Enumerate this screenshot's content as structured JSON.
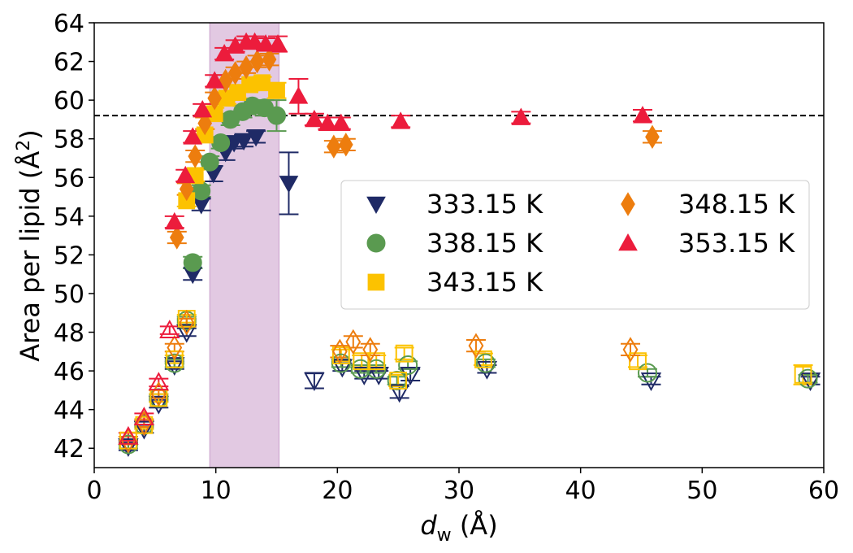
{
  "chart_data": {
    "type": "scatter",
    "title": "",
    "xlabel": {
      "main": "d",
      "sub": "w",
      "rest": " (Å)"
    },
    "ylabel": {
      "main": "Area per lipid (Å",
      "sup": "2",
      "rest": ")"
    },
    "xlim": [
      0,
      60
    ],
    "ylim": [
      41,
      64
    ],
    "xticks": [
      0,
      10,
      20,
      30,
      40,
      50,
      60
    ],
    "yticks": [
      42,
      44,
      46,
      48,
      50,
      52,
      54,
      56,
      58,
      60,
      62,
      64
    ],
    "hline": {
      "y": 59.2,
      "style": "dashed",
      "color": "#000000"
    },
    "shaded_region": {
      "x": [
        9.5,
        15.2
      ],
      "color": "#e2c9e2",
      "edge": "#c9a0cc"
    },
    "legend": {
      "placement": "center-right",
      "columns": 2
    },
    "series": [
      {
        "name": "333.15 K",
        "marker": "triangle-down",
        "color": "#1f2a66",
        "filled": [
          {
            "x": 8.1,
            "y": 51.0,
            "err": 0.3
          },
          {
            "x": 8.8,
            "y": 54.6,
            "err": 0.3
          },
          {
            "x": 9.8,
            "y": 56.2,
            "err": 0.4
          },
          {
            "x": 10.8,
            "y": 57.3,
            "err": 0.4
          },
          {
            "x": 11.5,
            "y": 57.8,
            "err": 0.3
          },
          {
            "x": 12.3,
            "y": 57.9,
            "err": 0.3
          },
          {
            "x": 13.3,
            "y": 58.1,
            "err": 0.3
          },
          {
            "x": 16.0,
            "y": 55.7,
            "err": 1.6
          }
        ],
        "open": [
          {
            "x": 2.8,
            "y": 42.1,
            "err": 0.2
          },
          {
            "x": 4.1,
            "y": 43.0,
            "err": 0.2
          },
          {
            "x": 5.3,
            "y": 44.3,
            "err": 0.2
          },
          {
            "x": 6.6,
            "y": 46.3,
            "err": 0.2
          },
          {
            "x": 7.6,
            "y": 48.0,
            "err": 0.2
          },
          {
            "x": 18.1,
            "y": 45.5,
            "err": 0.4
          },
          {
            "x": 20.4,
            "y": 46.2,
            "err": 0.2
          },
          {
            "x": 22.2,
            "y": 45.8,
            "err": 0.2
          },
          {
            "x": 23.4,
            "y": 45.8,
            "err": 0.2
          },
          {
            "x": 25.1,
            "y": 44.9,
            "err": 0.3
          },
          {
            "x": 26.0,
            "y": 45.8,
            "err": 0.3
          },
          {
            "x": 32.3,
            "y": 46.1,
            "err": 0.2
          },
          {
            "x": 45.8,
            "y": 45.5,
            "err": 0.2
          },
          {
            "x": 58.9,
            "y": 45.5,
            "err": 0.2
          }
        ]
      },
      {
        "name": "338.15 K",
        "marker": "circle",
        "color": "#5a9a50",
        "filled": [
          {
            "x": 8.1,
            "y": 51.6,
            "err": 0.3
          },
          {
            "x": 8.8,
            "y": 55.3,
            "err": 0.3
          },
          {
            "x": 9.5,
            "y": 56.8,
            "err": 0.3
          },
          {
            "x": 10.4,
            "y": 57.8,
            "err": 0.3
          },
          {
            "x": 11.2,
            "y": 59.0,
            "err": 0.3
          },
          {
            "x": 12.2,
            "y": 59.4,
            "err": 0.3
          },
          {
            "x": 13.0,
            "y": 59.7,
            "err": 0.3
          },
          {
            "x": 14.0,
            "y": 59.6,
            "err": 0.4
          },
          {
            "x": 15.0,
            "y": 59.2,
            "err": 0.8
          }
        ],
        "open": [
          {
            "x": 2.8,
            "y": 42.2,
            "err": 0.2
          },
          {
            "x": 4.1,
            "y": 43.2,
            "err": 0.2
          },
          {
            "x": 5.3,
            "y": 44.6,
            "err": 0.2
          },
          {
            "x": 6.6,
            "y": 46.4,
            "err": 0.2
          },
          {
            "x": 7.6,
            "y": 48.6,
            "err": 0.2
          },
          {
            "x": 20.3,
            "y": 46.4,
            "err": 0.2
          },
          {
            "x": 21.9,
            "y": 46.1,
            "err": 0.2
          },
          {
            "x": 23.2,
            "y": 46.1,
            "err": 0.2
          },
          {
            "x": 24.9,
            "y": 45.5,
            "err": 0.2
          },
          {
            "x": 25.8,
            "y": 46.3,
            "err": 0.2
          },
          {
            "x": 32.2,
            "y": 46.4,
            "err": 0.2
          },
          {
            "x": 45.5,
            "y": 45.9,
            "err": 0.2
          },
          {
            "x": 58.7,
            "y": 45.6,
            "err": 0.2
          }
        ]
      },
      {
        "name": "343.15 K",
        "marker": "square",
        "color": "#fcc200",
        "filled": [
          {
            "x": 7.6,
            "y": 54.8,
            "err": 0.3
          },
          {
            "x": 8.3,
            "y": 56.1,
            "err": 0.3
          },
          {
            "x": 9.1,
            "y": 58.2,
            "err": 0.3
          },
          {
            "x": 9.9,
            "y": 59.3,
            "err": 0.3
          },
          {
            "x": 10.9,
            "y": 60.1,
            "err": 0.3
          },
          {
            "x": 11.8,
            "y": 60.4,
            "err": 0.3
          },
          {
            "x": 12.8,
            "y": 60.8,
            "err": 0.3
          },
          {
            "x": 13.8,
            "y": 60.9,
            "err": 0.3
          },
          {
            "x": 15.0,
            "y": 60.5,
            "err": 0.4
          }
        ],
        "open": [
          {
            "x": 2.8,
            "y": 42.4,
            "err": 0.2
          },
          {
            "x": 4.1,
            "y": 43.2,
            "err": 0.2
          },
          {
            "x": 5.3,
            "y": 44.6,
            "err": 0.2
          },
          {
            "x": 6.6,
            "y": 46.6,
            "err": 0.2
          },
          {
            "x": 7.6,
            "y": 48.7,
            "err": 0.2
          },
          {
            "x": 20.3,
            "y": 46.8,
            "err": 0.3
          },
          {
            "x": 22.0,
            "y": 46.5,
            "err": 0.3
          },
          {
            "x": 23.2,
            "y": 46.5,
            "err": 0.3
          },
          {
            "x": 25.0,
            "y": 45.5,
            "err": 0.3
          },
          {
            "x": 25.5,
            "y": 46.9,
            "err": 0.3
          },
          {
            "x": 32.0,
            "y": 46.6,
            "err": 0.3
          },
          {
            "x": 44.7,
            "y": 46.5,
            "err": 0.3
          },
          {
            "x": 58.3,
            "y": 45.8,
            "err": 0.5
          }
        ]
      },
      {
        "name": "348.15 K",
        "marker": "diamond",
        "color": "#ed7d0e",
        "filled": [
          {
            "x": 6.8,
            "y": 52.9,
            "err": 0.3
          },
          {
            "x": 7.6,
            "y": 55.4,
            "err": 0.3
          },
          {
            "x": 8.3,
            "y": 57.1,
            "err": 0.3
          },
          {
            "x": 9.1,
            "y": 58.8,
            "err": 0.3
          },
          {
            "x": 9.9,
            "y": 60.1,
            "err": 0.3
          },
          {
            "x": 10.8,
            "y": 61.0,
            "err": 0.3
          },
          {
            "x": 11.6,
            "y": 61.4,
            "err": 0.3
          },
          {
            "x": 12.5,
            "y": 61.7,
            "err": 0.3
          },
          {
            "x": 13.4,
            "y": 62.0,
            "err": 0.3
          },
          {
            "x": 14.4,
            "y": 62.1,
            "err": 0.3
          },
          {
            "x": 19.7,
            "y": 57.6,
            "err": 0.3
          },
          {
            "x": 20.7,
            "y": 57.7,
            "err": 0.3
          },
          {
            "x": 45.9,
            "y": 58.1,
            "err": 0.3
          }
        ],
        "open": [
          {
            "x": 2.8,
            "y": 42.4,
            "err": 0.2
          },
          {
            "x": 4.1,
            "y": 43.3,
            "err": 0.2
          },
          {
            "x": 5.3,
            "y": 44.8,
            "err": 0.2
          },
          {
            "x": 6.6,
            "y": 47.2,
            "err": 0.2
          },
          {
            "x": 7.6,
            "y": 48.5,
            "err": 0.2
          },
          {
            "x": 20.2,
            "y": 47.0,
            "err": 0.3
          },
          {
            "x": 21.3,
            "y": 47.5,
            "err": 0.3
          },
          {
            "x": 22.7,
            "y": 47.1,
            "err": 0.3
          },
          {
            "x": 31.4,
            "y": 47.3,
            "err": 0.3
          },
          {
            "x": 44.1,
            "y": 47.1,
            "err": 0.3
          }
        ]
      },
      {
        "name": "353.15 K",
        "marker": "triangle-up",
        "color": "#ec1c3c",
        "filled": [
          {
            "x": 6.6,
            "y": 53.7,
            "err": 0.3
          },
          {
            "x": 7.5,
            "y": 56.1,
            "err": 0.3
          },
          {
            "x": 8.1,
            "y": 58.1,
            "err": 0.3
          },
          {
            "x": 8.9,
            "y": 59.5,
            "err": 0.3
          },
          {
            "x": 9.9,
            "y": 61.0,
            "err": 0.3
          },
          {
            "x": 10.7,
            "y": 62.4,
            "err": 0.3
          },
          {
            "x": 11.6,
            "y": 62.8,
            "err": 0.3
          },
          {
            "x": 12.5,
            "y": 63.0,
            "err": 0.3
          },
          {
            "x": 13.2,
            "y": 63.0,
            "err": 0.3
          },
          {
            "x": 14.1,
            "y": 62.9,
            "err": 0.3
          },
          {
            "x": 15.1,
            "y": 62.9,
            "err": 0.4
          },
          {
            "x": 16.8,
            "y": 60.2,
            "err": 0.9
          },
          {
            "x": 18.1,
            "y": 59.0,
            "err": 0.3
          },
          {
            "x": 19.2,
            "y": 58.8,
            "err": 0.3
          },
          {
            "x": 20.3,
            "y": 58.8,
            "err": 0.3
          },
          {
            "x": 25.2,
            "y": 58.9,
            "err": 0.3
          },
          {
            "x": 35.1,
            "y": 59.1,
            "err": 0.3
          },
          {
            "x": 45.1,
            "y": 59.2,
            "err": 0.3
          }
        ],
        "open": [
          {
            "x": 2.8,
            "y": 42.6,
            "err": 0.2
          },
          {
            "x": 4.1,
            "y": 43.6,
            "err": 0.2
          },
          {
            "x": 5.3,
            "y": 45.4,
            "err": 0.2
          },
          {
            "x": 6.2,
            "y": 48.1,
            "err": 0.2
          }
        ]
      }
    ]
  }
}
